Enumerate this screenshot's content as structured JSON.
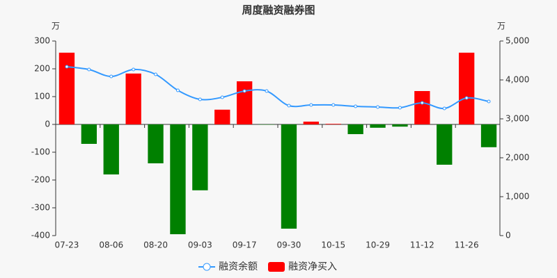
{
  "chart_data": {
    "type": "bar-line",
    "title": "周度融资融券图",
    "y_unit": "万",
    "y2_unit": "万",
    "categories": [
      "07-23",
      null,
      "08-06",
      null,
      "08-20",
      null,
      "09-03",
      null,
      "09-17",
      null,
      "09-30",
      null,
      "10-15",
      null,
      "10-29",
      null,
      "11-12",
      null,
      "11-26",
      null
    ],
    "series": [
      {
        "name": "融资余额",
        "type": "line",
        "axis": "y2",
        "color": "#3399ff",
        "values": [
          4340,
          4268,
          4089,
          4268,
          4143,
          3732,
          3500,
          3554,
          3714,
          3714,
          3339,
          3357,
          3357,
          3321,
          3304,
          3286,
          3411,
          3268,
          3536,
          3446
        ]
      },
      {
        "name": "融资净买入",
        "type": "bar",
        "axis": "y",
        "color": "#ff0000",
        "negative_color": "#008000",
        "values": [
          258,
          -70,
          -180,
          183,
          -140,
          -395,
          -237,
          53,
          155,
          -1,
          -375,
          10,
          2,
          -35,
          -12,
          -8,
          120,
          -145,
          258,
          -82
        ]
      }
    ],
    "ylim": [
      -400,
      300
    ],
    "yticks": [
      -400,
      -300,
      -200,
      -100,
      0,
      100,
      200,
      300
    ],
    "y2lim": [
      0,
      5000
    ],
    "y2ticks": [
      0,
      {
        "value": 1000,
        "label": "1,000"
      },
      {
        "value": 2000,
        "label": "2,000"
      },
      {
        "value": 3000,
        "label": "3,000"
      },
      {
        "value": 4000,
        "label": "4,000"
      },
      {
        "value": 5000,
        "label": "5,000"
      }
    ],
    "grid": false
  }
}
